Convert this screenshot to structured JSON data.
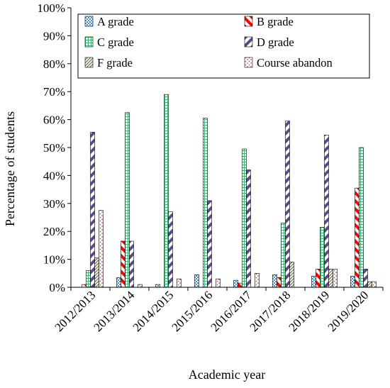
{
  "chart_data": {
    "type": "bar",
    "xlabel": "Academic year",
    "ylabel": "Percentage of students",
    "ylim": [
      0,
      100
    ],
    "y_ticks": [
      "0%",
      "10%",
      "20%",
      "30%",
      "40%",
      "50%",
      "60%",
      "70%",
      "80%",
      "90%",
      "100%"
    ],
    "grid": false,
    "legend_position": "top",
    "categories": [
      "2012/2013",
      "2013/2014",
      "2014/2015",
      "2015/2016",
      "2016/2017",
      "2017/2018",
      "2018/2019",
      "2019/2020"
    ],
    "series": [
      {
        "name": "A grade",
        "color": "#4a90d9",
        "pattern": "checker",
        "values": [
          0,
          3.5,
          1,
          4.5,
          2.5,
          4.5,
          4,
          4
        ]
      },
      {
        "name": "B grade",
        "color": "#ff0000",
        "pattern": "diagonal",
        "values": [
          1,
          16.5,
          0,
          0,
          1.5,
          3.5,
          6.5,
          35.5
        ]
      },
      {
        "name": "C grade",
        "color": "#3cb371",
        "pattern": "dashed-grid",
        "values": [
          6,
          62.5,
          69,
          60.5,
          49.5,
          23,
          21.5,
          50
        ]
      },
      {
        "name": "D grade",
        "color": "#5a4a8a",
        "pattern": "diagonal",
        "values": [
          55.5,
          16.5,
          27,
          31,
          42,
          59.5,
          54.5,
          6.5
        ]
      },
      {
        "name": "F grade",
        "color": "#8a8a6a",
        "pattern": "diagonal-dense",
        "values": [
          10.5,
          0,
          0,
          0,
          0,
          9,
          6.5,
          2
        ]
      },
      {
        "name": "Course abandon",
        "color": "#c0504d",
        "pattern": "dots",
        "values": [
          27.5,
          1,
          3,
          3,
          5,
          0,
          6.5,
          2
        ]
      }
    ]
  }
}
